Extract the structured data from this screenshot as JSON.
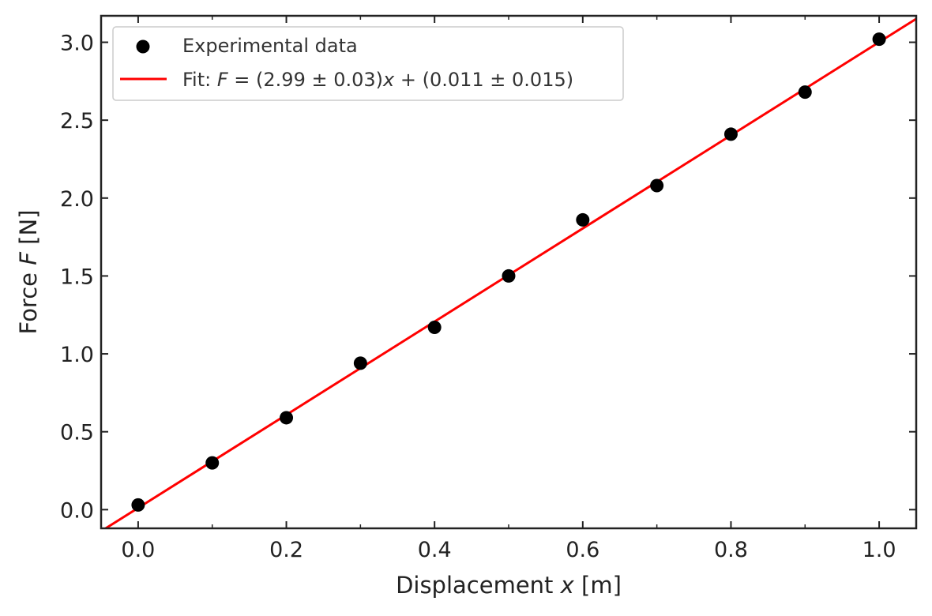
{
  "chart_data": {
    "type": "scatter",
    "title": "",
    "xlabel": {
      "prefix": "Displacement ",
      "var": "x",
      "suffix": " [m]"
    },
    "ylabel": {
      "prefix": "Force ",
      "var": "F",
      "suffix": " [N]"
    },
    "xlim": [
      -0.05,
      1.05
    ],
    "ylim": [
      -0.12,
      3.17
    ],
    "x_ticks": [
      0.0,
      0.2,
      0.4,
      0.6,
      0.8,
      1.0
    ],
    "x_tick_labels": [
      "0.0",
      "0.2",
      "0.4",
      "0.6",
      "0.8",
      "1.0"
    ],
    "y_ticks": [
      0.0,
      0.5,
      1.0,
      1.5,
      2.0,
      2.5,
      3.0
    ],
    "y_tick_labels": [
      "0.0",
      "0.5",
      "1.0",
      "1.5",
      "2.0",
      "2.5",
      "3.0"
    ],
    "x_minor_ticks": [
      0.1,
      0.3,
      0.5,
      0.7,
      0.9
    ],
    "grid": false,
    "legend_position": "top-left",
    "series": [
      {
        "name": "Experimental data",
        "type": "scatter",
        "color": "#000000",
        "x": [
          0.0,
          0.1,
          0.2,
          0.3,
          0.4,
          0.5,
          0.6,
          0.7,
          0.8,
          0.9,
          1.0
        ],
        "y": [
          0.03,
          0.3,
          0.59,
          0.94,
          1.17,
          1.5,
          1.86,
          2.08,
          2.41,
          2.68,
          3.02
        ]
      },
      {
        "name": "Fit: F = (2.99 ± 0.03)x + (0.011 ± 0.015)",
        "type": "line",
        "color": "#ff0000",
        "slope": 2.99,
        "intercept": 0.011
      }
    ],
    "legend": [
      {
        "label_parts": [
          {
            "t": "Experimental data",
            "italic": false
          }
        ]
      },
      {
        "label_parts": [
          {
            "t": "Fit: ",
            "italic": false
          },
          {
            "t": "F",
            "italic": true
          },
          {
            "t": " = (2.99 ± 0.03)",
            "italic": false
          },
          {
            "t": "x",
            "italic": true
          },
          {
            "t": " + (0.011 ± 0.015)",
            "italic": false
          }
        ]
      }
    ]
  }
}
